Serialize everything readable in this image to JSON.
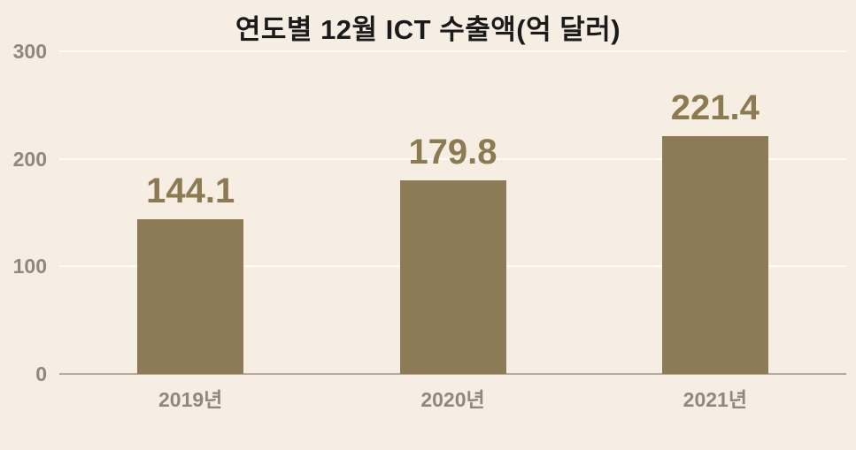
{
  "title": "연도별 12월 ICT 수출액(억 달러)",
  "colors": {
    "background": "#f7eee3",
    "bar": "#8d7b57",
    "value_label": "#8c7a52",
    "gridline": "#fffdf8",
    "axis_line": "#b3aa9c",
    "tick_label": "#8e887e",
    "title_text": "#1b1b1b"
  },
  "chart_data": {
    "type": "bar",
    "title": "연도별 12월 ICT 수출액(억 달러)",
    "categories": [
      "2019년",
      "2020년",
      "2021년"
    ],
    "values": [
      144.1,
      179.8,
      221.4
    ],
    "value_labels": [
      "144.1",
      "179.8",
      "221.4"
    ],
    "xlabel": "",
    "ylabel": "",
    "ylim": [
      0,
      300
    ],
    "yticks": [
      0,
      100,
      200,
      300
    ],
    "grid": true,
    "legend": false
  }
}
